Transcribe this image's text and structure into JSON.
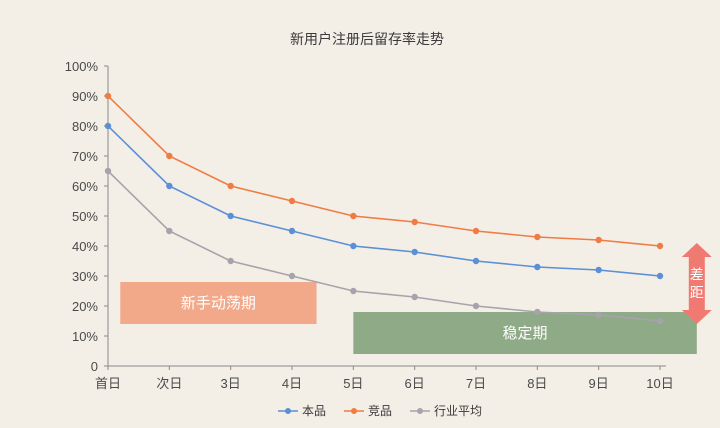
{
  "chart_data": {
    "type": "line",
    "title": "新用户注册后留存率走势",
    "categories": [
      "首日",
      "次日",
      "3日",
      "4日",
      "5日",
      "6日",
      "7日",
      "8日",
      "9日",
      "10日"
    ],
    "y_ticks": [
      "0",
      "10%",
      "20%",
      "30%",
      "40%",
      "50%",
      "60%",
      "70%",
      "80%",
      "90%",
      "100%"
    ],
    "ylim": [
      0,
      100
    ],
    "grid": false,
    "legend_position": "bottom",
    "series": [
      {
        "name": "本品",
        "color": "#5b8fd6",
        "values": [
          80,
          60,
          50,
          45,
          40,
          38,
          35,
          33,
          32,
          30
        ]
      },
      {
        "name": "竞品",
        "color": "#f07c45",
        "values": [
          90,
          70,
          60,
          55,
          50,
          48,
          45,
          43,
          42,
          40
        ]
      },
      {
        "name": "行业平均",
        "color": "#a7a3ad",
        "values": [
          65,
          45,
          35,
          30,
          25,
          23,
          20,
          18,
          17,
          15
        ]
      }
    ],
    "annotations": {
      "novice_band": {
        "label": "新手动荡期",
        "color": "#f2a98a",
        "x_from": 0.2,
        "x_to": 3.4,
        "y_from": 14,
        "y_to": 28
      },
      "stable_band": {
        "label": "稳定期",
        "color": "#8faa86",
        "x_from": 4,
        "x_to": 9.6,
        "y_from": 4,
        "y_to": 18
      },
      "gap_arrow": {
        "label": "差距",
        "color": "#f07a72",
        "x": 9.6,
        "y_from": 14,
        "y_to": 41
      }
    }
  }
}
